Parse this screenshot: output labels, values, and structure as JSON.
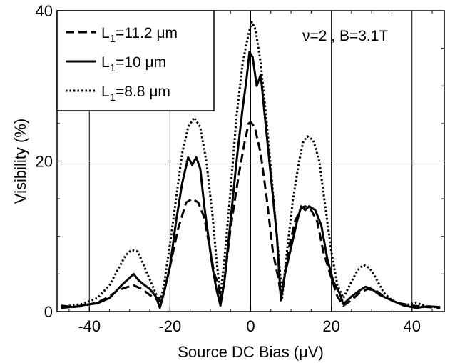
{
  "chart_data": {
    "type": "line",
    "title": "",
    "xlabel": "Source DC Bias (μV)",
    "ylabel": "Visibility (%)",
    "xlim": [
      -48,
      48
    ],
    "ylim": [
      0,
      40
    ],
    "xticks": [
      -40,
      -20,
      0,
      20,
      40
    ],
    "yticks": [
      0,
      20,
      40
    ],
    "grid": true,
    "legend_position": "top-left",
    "annotation": "ν=2 , B=3.1T",
    "series": [
      {
        "name": "L1=11.2 μm",
        "legend_main": "L",
        "legend_sub": "1",
        "legend_rest": "=11.2 μm",
        "style": "dashed",
        "color": "#000000",
        "x": [
          -47,
          -42,
          -38,
          -35,
          -33,
          -31,
          -29,
          -27,
          -25,
          -23,
          -21.5,
          -20,
          -18,
          -16,
          -14.5,
          -13,
          -11.5,
          -10,
          -9,
          -8,
          -7.5,
          -6.5,
          -5,
          -3,
          -1.5,
          -0.5,
          0,
          1,
          2.5,
          4,
          5.5,
          7,
          7.5,
          8.5,
          9.5,
          11,
          12.5,
          13.5,
          15,
          16.5,
          18,
          20,
          21.5,
          23,
          25,
          27,
          29,
          31,
          33,
          36,
          40,
          44,
          47
        ],
        "y": [
          0.5,
          0.7,
          1.2,
          2.0,
          2.8,
          3.2,
          3.5,
          3.0,
          2.2,
          1.5,
          2.5,
          6.0,
          11.0,
          14.5,
          15.0,
          14.5,
          12.5,
          8.0,
          5.0,
          3.5,
          1.5,
          4.0,
          11.0,
          18.0,
          22.5,
          25.0,
          25.2,
          24.5,
          21.0,
          15.0,
          8.0,
          4.0,
          2.0,
          5.0,
          8.5,
          12.0,
          13.8,
          14.0,
          13.5,
          12.0,
          8.0,
          4.5,
          2.0,
          0.8,
          1.5,
          2.5,
          3.0,
          2.8,
          2.0,
          1.2,
          0.8,
          0.6,
          0.5
        ]
      },
      {
        "name": "L1=10 μm",
        "legend_main": "L",
        "legend_sub": "1",
        "legend_rest": "=10 μm",
        "style": "solid",
        "color": "#000000",
        "x": [
          -47,
          -44,
          -41,
          -38,
          -35,
          -32,
          -30,
          -29,
          -28,
          -27,
          -25,
          -23.5,
          -22.5,
          -21.5,
          -20,
          -18.5,
          -17,
          -15.5,
          -14.5,
          -13.5,
          -12.5,
          -11.5,
          -10.5,
          -9.5,
          -8.5,
          -7.5,
          -6.5,
          -5,
          -3.5,
          -2,
          -1,
          -0.3,
          0.5,
          1.5,
          2.5,
          3.5,
          5,
          6.5,
          7.5,
          8.5,
          10,
          11.5,
          12.5,
          13.5,
          14.5,
          16,
          17.5,
          19,
          20.5,
          22,
          23,
          25,
          27,
          28.5,
          30,
          32,
          35,
          38,
          41,
          44,
          47
        ],
        "y": [
          0.8,
          0.6,
          0.9,
          1.1,
          1.8,
          3.5,
          4.5,
          5.0,
          4.3,
          3.8,
          3.0,
          2.0,
          0.5,
          2.5,
          6.0,
          12.0,
          17.0,
          20.5,
          19.5,
          20.5,
          19.0,
          14.0,
          10.0,
          6.0,
          3.0,
          0.8,
          4.0,
          12.0,
          20.0,
          27.0,
          31.0,
          34.5,
          33.8,
          30.0,
          31.5,
          26.0,
          18.0,
          10.0,
          1.5,
          5.0,
          8.5,
          12.0,
          14.0,
          13.5,
          14.0,
          13.5,
          11.5,
          7.0,
          4.0,
          2.5,
          1.0,
          2.0,
          2.8,
          3.3,
          3.0,
          2.2,
          1.5,
          0.8,
          0.5,
          0.7,
          0.6
        ]
      },
      {
        "name": "L1=8.8 μm",
        "legend_main": "L",
        "legend_sub": "1",
        "legend_rest": "=8.8 μm",
        "style": "dotted",
        "color": "#000000",
        "x": [
          -47,
          -42,
          -38,
          -35,
          -33,
          -31,
          -29.5,
          -28,
          -26,
          -24,
          -22.5,
          -21.5,
          -20,
          -18.5,
          -17,
          -15.5,
          -14,
          -12.5,
          -11,
          -9.5,
          -8.5,
          -7.5,
          -6.5,
          -5,
          -3.5,
          -2,
          -0.5,
          0.3,
          1.2,
          2.5,
          4,
          5.5,
          7,
          7.8,
          9,
          10.5,
          12,
          13,
          14,
          15.5,
          17,
          18.5,
          20,
          21.5,
          23,
          25,
          26.5,
          28,
          29.5,
          31,
          33,
          35,
          38,
          41,
          44,
          47
        ],
        "y": [
          0.6,
          1.0,
          1.8,
          3.5,
          5.5,
          7.5,
          8.2,
          8.0,
          5.5,
          3.0,
          1.2,
          3.5,
          9.0,
          15.0,
          21.0,
          24.5,
          25.8,
          24.5,
          20.0,
          13.0,
          7.0,
          2.0,
          7.0,
          16.0,
          26.0,
          33.0,
          37.0,
          38.5,
          37.5,
          33.0,
          25.0,
          16.0,
          7.0,
          1.8,
          8.0,
          15.0,
          20.0,
          22.5,
          23.3,
          22.8,
          20.0,
          14.0,
          8.0,
          3.5,
          1.8,
          4.0,
          5.5,
          6.2,
          5.8,
          4.5,
          2.5,
          1.5,
          0.8,
          1.2,
          0.6,
          0.6
        ]
      }
    ]
  }
}
